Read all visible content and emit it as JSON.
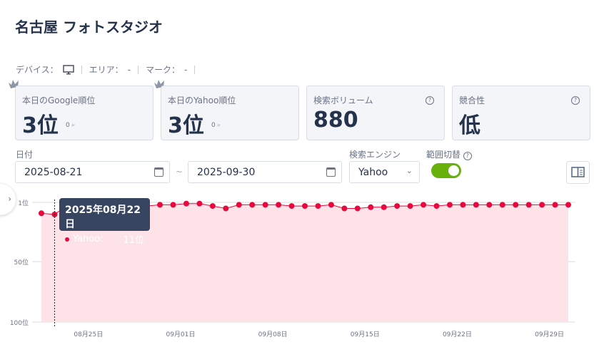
{
  "title": "名古屋 フォトスタジオ",
  "meta": {
    "device_label": "デバイス：",
    "device_icon": "monitor-icon",
    "area_label": "エリア：",
    "area_value": "-",
    "mark_label": "マーク：",
    "mark_value": "-"
  },
  "cards": [
    {
      "label": "本日のGoogle順位",
      "value": "3位",
      "change": "0",
      "icon": "crown-icon"
    },
    {
      "label": "本日のYahoo順位",
      "value": "3位",
      "change": "0",
      "icon": "crown-icon"
    },
    {
      "label": "検索ボリューム",
      "value": "880",
      "help": "?"
    },
    {
      "label": "競合性",
      "value": "低",
      "help": "?"
    }
  ],
  "filters": {
    "date_label": "日付",
    "start_date": "2025-08-21",
    "tilde": "~",
    "end_date": "2025-09-30",
    "engine_label": "検索エンジン",
    "engine_value": "Yahoo",
    "range_label": "範囲切替",
    "range_help": "?",
    "range_toggle_on": true
  },
  "colors": {
    "line": "#e8083e",
    "area": "#fde2e7",
    "toggle": "#67b10a",
    "tooltip": "#374561"
  },
  "tooltip": {
    "date": "2025年08月22日",
    "series": "Yahoo:",
    "value": "11位"
  },
  "chart_data": {
    "type": "area",
    "series": [
      {
        "name": "Yahoo",
        "values": [
          10,
          11,
          3,
          3,
          3,
          3,
          2,
          3,
          4,
          3,
          3,
          2,
          2,
          4,
          6,
          3,
          3,
          3,
          3,
          4,
          4,
          4,
          3,
          6,
          6,
          5,
          5,
          4,
          4,
          3,
          4,
          3,
          3,
          3,
          3,
          3,
          3,
          3,
          3,
          3,
          3
        ]
      }
    ],
    "x_start": "2025-08-21",
    "x_end": "2025-09-30",
    "x_tick_labels": [
      "08月25日",
      "09月01日",
      "09月08日",
      "09月15日",
      "09月22日",
      "09月29日"
    ],
    "y_tick_labels": [
      "1位",
      "50位",
      "100位"
    ],
    "ylim": [
      1,
      100
    ],
    "y_reversed": true,
    "grid": true
  }
}
